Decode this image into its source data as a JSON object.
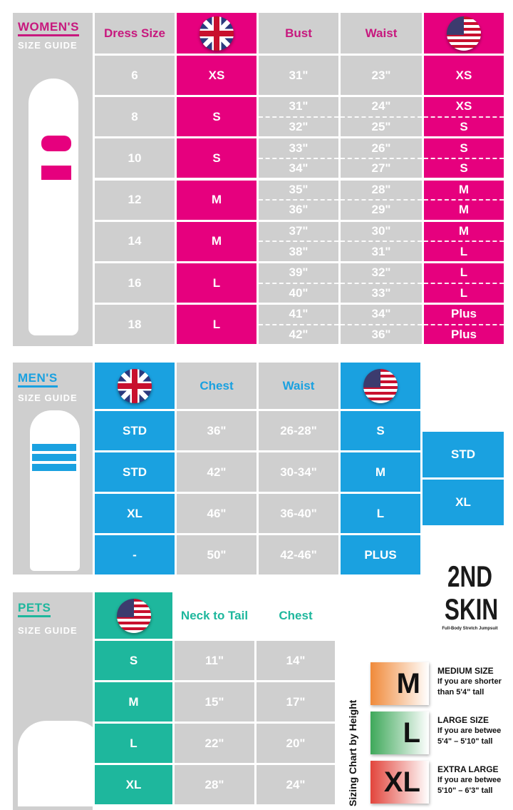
{
  "colors": {
    "women": "#e6007e",
    "men": "#1aa1e0",
    "pets": "#1eb79d",
    "grey": "#cfcfcf"
  },
  "women": {
    "title": "WOMEN'S",
    "subtitle": "SIZE GUIDE",
    "headers": {
      "dress": "Dress Size",
      "uk": "uk-flag-icon",
      "bust": "Bust",
      "waist": "Waist",
      "us": "us-flag-icon"
    },
    "rows": [
      {
        "dress": "6",
        "uk": "XS",
        "bust": [
          "31\""
        ],
        "waist": [
          "23\""
        ],
        "us": [
          "XS"
        ]
      },
      {
        "dress": "8",
        "uk": "S",
        "bust": [
          "31\"",
          "32\""
        ],
        "waist": [
          "24\"",
          "25\""
        ],
        "us": [
          "XS",
          "S"
        ]
      },
      {
        "dress": "10",
        "uk": "S",
        "bust": [
          "33\"",
          "34\""
        ],
        "waist": [
          "26\"",
          "27\""
        ],
        "us": [
          "S",
          "S"
        ]
      },
      {
        "dress": "12",
        "uk": "M",
        "bust": [
          "35\"",
          "36\""
        ],
        "waist": [
          "28\"",
          "29\""
        ],
        "us": [
          "M",
          "M"
        ]
      },
      {
        "dress": "14",
        "uk": "M",
        "bust": [
          "37\"",
          "38\""
        ],
        "waist": [
          "30\"",
          "31\""
        ],
        "us": [
          "M",
          "L"
        ]
      },
      {
        "dress": "16",
        "uk": "L",
        "bust": [
          "39\"",
          "40\""
        ],
        "waist": [
          "32\"",
          "33\""
        ],
        "us": [
          "L",
          "L"
        ]
      },
      {
        "dress": "18",
        "uk": "L",
        "bust": [
          "41\"",
          "42\""
        ],
        "waist": [
          "34\"",
          "36\""
        ],
        "us": [
          "Plus",
          "Plus"
        ]
      }
    ]
  },
  "men": {
    "title": "MEN'S",
    "subtitle": "SIZE GUIDE",
    "headers": {
      "chest": "Chest",
      "waist": "Waist"
    },
    "rows": [
      {
        "uk": "STD",
        "chest": "36\"",
        "waist": "26-28\"",
        "us": "S"
      },
      {
        "uk": "STD",
        "chest": "42\"",
        "waist": "30-34\"",
        "us": "M"
      },
      {
        "uk": "XL",
        "chest": "46\"",
        "waist": "36-40\"",
        "us": "L"
      },
      {
        "uk": "-",
        "chest": "50\"",
        "waist": "42-46\"",
        "us": "PLUS"
      }
    ],
    "extra": [
      "STD",
      "XL"
    ]
  },
  "pets": {
    "title": "PETS",
    "subtitle": "SIZE GUIDE",
    "headers": {
      "neck": "Neck to Tail",
      "chest": "Chest"
    },
    "rows": [
      {
        "us": "S",
        "neck": "11\"",
        "chest": "14\""
      },
      {
        "us": "M",
        "neck": "15\"",
        "chest": "17\""
      },
      {
        "us": "L",
        "neck": "22\"",
        "chest": "20\""
      },
      {
        "us": "XL",
        "neck": "28\"",
        "chest": "24\""
      }
    ]
  },
  "brand": {
    "logo_line1": "2ND",
    "logo_line2": "SKIN",
    "logo_tagline": "Full-Body Stretch Jumpsuit"
  },
  "height_chart": {
    "title": "Sizing Chart by Height",
    "items": [
      {
        "size": "M",
        "label": "MEDIUM SIZE",
        "line1": "If you are shorter",
        "line2": "than 5'4\" tall",
        "color": "#f08a3a"
      },
      {
        "size": "L",
        "label": "LARGE SIZE",
        "line1": "If you are betwee",
        "line2": "5'4\" – 5'10\" tall",
        "color": "#3ea85a"
      },
      {
        "size": "XL",
        "label": "EXTRA LARGE",
        "line1": "If you are betwee",
        "line2": "5'10\" – 6'3\" tall",
        "color": "#e2453c"
      }
    ]
  }
}
